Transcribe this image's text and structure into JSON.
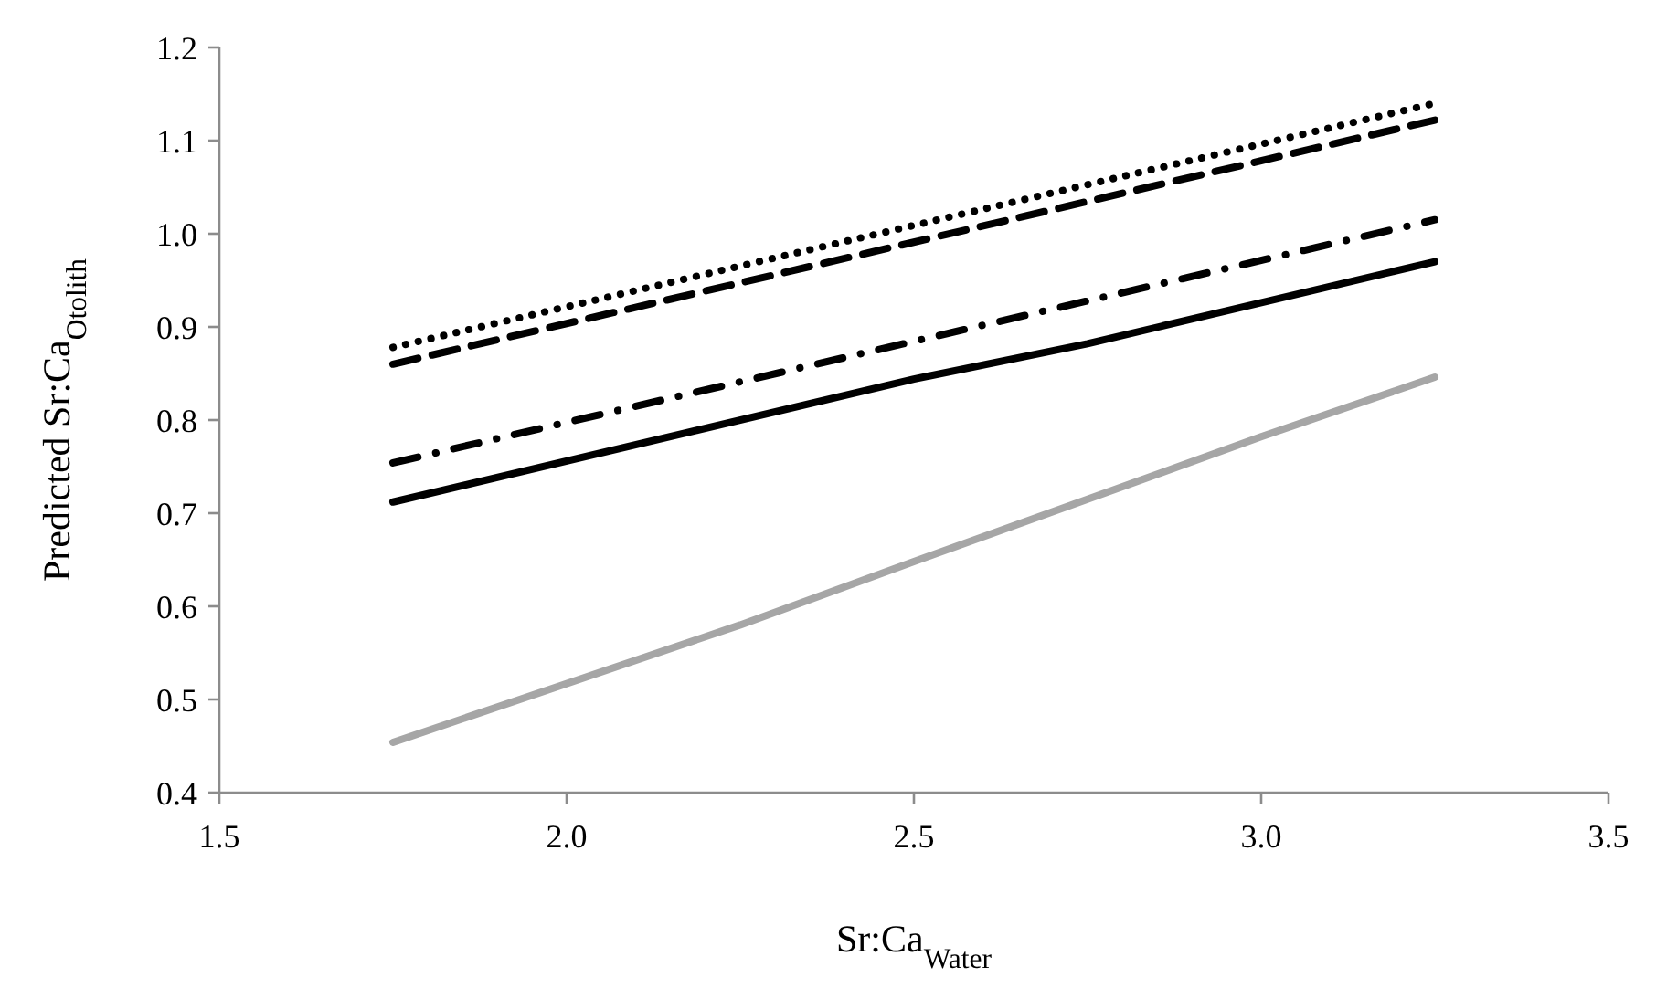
{
  "chart_data": {
    "type": "line",
    "xlabel": "Sr:Ca$_{Water}$",
    "ylabel": "Predicted Sr:Ca$_{Otolith}$",
    "xlim": [
      1.5,
      3.5
    ],
    "xticks": [
      1.5,
      {
        "value": 2,
        "label": "2.0"
      },
      2.5,
      {
        "value": 3,
        "label": "3.0"
      },
      3.5
    ],
    "ylim": [
      0.4,
      1.2
    ],
    "yticks": [
      0.4,
      0.5,
      0.6,
      0.7,
      0.8,
      0.9,
      {
        "value": 1,
        "label": "1.0"
      },
      1.1,
      1.2
    ],
    "grid": false,
    "marker": "none",
    "series": [
      {
        "color": "#000000",
        "line_style": "dotted",
        "x": [
          1.75,
          3.25
        ],
        "values": [
          0.878,
          1.14
        ]
      },
      {
        "color": "#000000",
        "line_style": "dashed",
        "x": [
          1.75,
          3.25
        ],
        "values": [
          0.86,
          1.122
        ]
      },
      {
        "color": "#000000",
        "line_style": "dashdot",
        "x": [
          1.75,
          3.25
        ],
        "values": [
          0.754,
          1.015
        ]
      },
      {
        "color": "#000000",
        "line_style": "solid",
        "x": [
          1.75,
          2.5,
          2.75,
          3.25
        ],
        "values": [
          0.712,
          0.844,
          0.882,
          0.97
        ]
      },
      {
        "color": "#a6a6a6",
        "line_style": "solid",
        "x": [
          1.75,
          2.25,
          2.5,
          3.0,
          3.25
        ],
        "values": [
          0.454,
          0.58,
          0.648,
          0.782,
          0.846
        ]
      }
    ]
  }
}
